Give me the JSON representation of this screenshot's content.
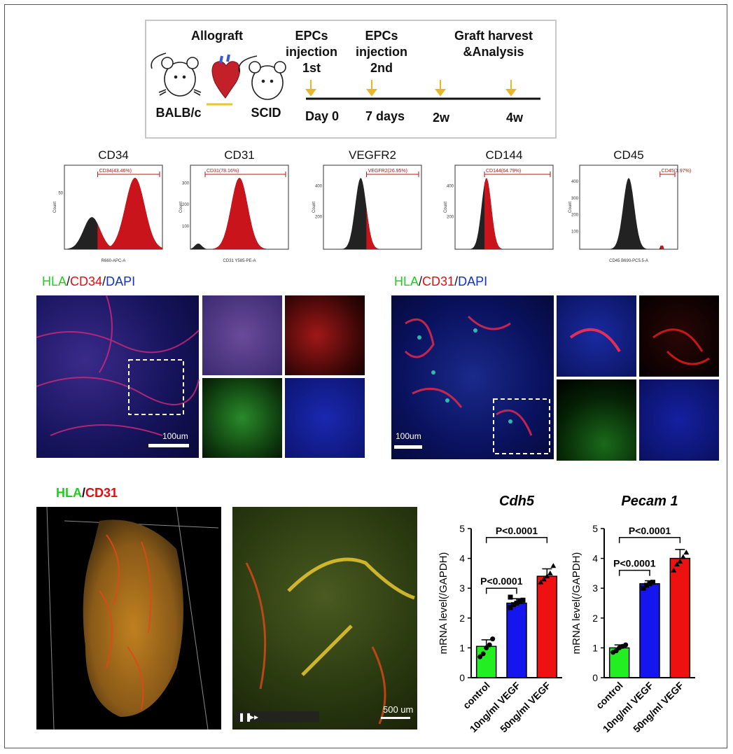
{
  "timeline": {
    "allograft": "Allograft",
    "donor": "BALB/c",
    "recipient": "SCID",
    "events": [
      {
        "label": "EPCs\ninjection\n1st",
        "day": "Day 0"
      },
      {
        "label": "EPCs\ninjection\n2nd",
        "day": "7 days"
      },
      {
        "label": "",
        "day": "2w"
      },
      {
        "label": "Graft harvest\n&Analysis",
        "day": "4w"
      }
    ],
    "arrow_color": "#e8b82a"
  },
  "flow": {
    "panels": [
      {
        "title": "CD34",
        "gate": "CD34(43.46%)",
        "xlabel": "R660-APC-A",
        "ylabel": "Count",
        "yticks": [
          "50"
        ]
      },
      {
        "title": "CD31",
        "gate": "CD31(78.16%)",
        "xlabel": "CD31 Y585-PE-A",
        "ylabel": "Count",
        "yticks": [
          "100",
          "200",
          "300"
        ]
      },
      {
        "title": "VEGFR2",
        "gate": "VEGFR2(26.95%)",
        "xlabel": "",
        "ylabel": "Count",
        "yticks": [
          "200",
          "400"
        ]
      },
      {
        "title": "CD144",
        "gate": "CD144(64.79%)",
        "xlabel": "",
        "ylabel": "Count",
        "yticks": [
          "200",
          "400"
        ]
      },
      {
        "title": "CD45",
        "gate": "CD45(1.97%)",
        "xlabel": "CD45 B690-PC5.5-A",
        "ylabel": "Count",
        "yticks": [
          "100",
          "200",
          "300",
          "400"
        ]
      }
    ]
  },
  "micro": {
    "left": {
      "hla": "HLA",
      "sep1": "/",
      "marker": "CD34",
      "sep2": "/",
      "dapi": "DAPI",
      "scale": "100um"
    },
    "right": {
      "hla": "HLA",
      "sep1": "/",
      "marker": "CD31",
      "sep2": "/",
      "dapi": "DAPI",
      "scale": "100um"
    }
  },
  "threed": {
    "hla": "HLA",
    "sep": "/",
    "marker": "CD31",
    "scale": "500 um"
  },
  "chart_data": [
    {
      "type": "bar",
      "title": "Cdh5",
      "ylabel": "mRNA level(/GAPDH)",
      "categories": [
        "control",
        "10ng/ml VEGF",
        "50ng/ml VEGF"
      ],
      "values": [
        1.05,
        2.5,
        3.4
      ],
      "errors": [
        0.22,
        0.15,
        0.25
      ],
      "points": [
        [
          0.7,
          0.8,
          1.0,
          1.1,
          1.3
        ],
        [
          2.35,
          2.45,
          2.5,
          2.55,
          2.6,
          2.7
        ],
        [
          3.2,
          3.3,
          3.4,
          3.5,
          3.75
        ]
      ],
      "colors": [
        "#22ee22",
        "#1515ee",
        "#ee1111"
      ],
      "ylim": [
        0,
        5
      ],
      "yticks": [
        0,
        1,
        2,
        3,
        4,
        5
      ],
      "comparisons": [
        {
          "from": 0,
          "to": 1,
          "label": "P<0.0001"
        },
        {
          "from": 0,
          "to": 2,
          "label": "P<0.0001"
        }
      ]
    },
    {
      "type": "bar",
      "title": "Pecam 1",
      "ylabel": "mRNA level(/GAPDH)",
      "categories": [
        "control",
        "10ng/ml VEGF",
        "50ng/ml VEGF"
      ],
      "values": [
        1.0,
        3.15,
        4.0
      ],
      "errors": [
        0.1,
        0.1,
        0.3
      ],
      "points": [
        [
          0.85,
          0.9,
          1.0,
          1.05,
          1.1
        ],
        [
          3.0,
          3.1,
          3.15,
          3.2
        ],
        [
          3.6,
          3.8,
          3.9,
          4.05,
          4.2
        ]
      ],
      "colors": [
        "#22ee22",
        "#1515ee",
        "#ee1111"
      ],
      "ylim": [
        0,
        5
      ],
      "yticks": [
        0,
        1,
        2,
        3,
        4,
        5
      ],
      "comparisons": [
        {
          "from": 0,
          "to": 1,
          "label": "P<0.0001"
        },
        {
          "from": 0,
          "to": 2,
          "label": "P<0.0001"
        }
      ]
    }
  ]
}
